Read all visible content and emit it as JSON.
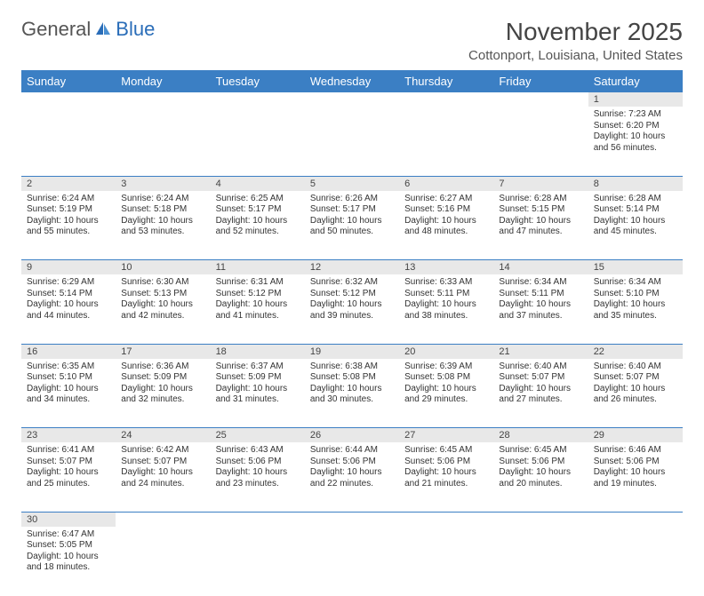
{
  "brand": {
    "part1": "General",
    "part2": "Blue"
  },
  "title": "November 2025",
  "location": "Cottonport, Louisiana, United States",
  "colors": {
    "header_bg": "#3b7fc4",
    "header_text": "#ffffff",
    "daynum_bg": "#e8e8e8",
    "border": "#3b7fc4",
    "body_bg": "#ffffff",
    "text": "#333333",
    "logo_blue": "#2a6db8"
  },
  "fonts": {
    "title_size": 28,
    "location_size": 15,
    "dayheader_size": 13,
    "daynum_size": 11,
    "body_size": 10
  },
  "day_headers": [
    "Sunday",
    "Monday",
    "Tuesday",
    "Wednesday",
    "Thursday",
    "Friday",
    "Saturday"
  ],
  "weeks": [
    {
      "nums": [
        "",
        "",
        "",
        "",
        "",
        "",
        "1"
      ],
      "cells": [
        "",
        "",
        "",
        "",
        "",
        "",
        "Sunrise: 7:23 AM\nSunset: 6:20 PM\nDaylight: 10 hours and 56 minutes."
      ]
    },
    {
      "nums": [
        "2",
        "3",
        "4",
        "5",
        "6",
        "7",
        "8"
      ],
      "cells": [
        "Sunrise: 6:24 AM\nSunset: 5:19 PM\nDaylight: 10 hours and 55 minutes.",
        "Sunrise: 6:24 AM\nSunset: 5:18 PM\nDaylight: 10 hours and 53 minutes.",
        "Sunrise: 6:25 AM\nSunset: 5:17 PM\nDaylight: 10 hours and 52 minutes.",
        "Sunrise: 6:26 AM\nSunset: 5:17 PM\nDaylight: 10 hours and 50 minutes.",
        "Sunrise: 6:27 AM\nSunset: 5:16 PM\nDaylight: 10 hours and 48 minutes.",
        "Sunrise: 6:28 AM\nSunset: 5:15 PM\nDaylight: 10 hours and 47 minutes.",
        "Sunrise: 6:28 AM\nSunset: 5:14 PM\nDaylight: 10 hours and 45 minutes."
      ]
    },
    {
      "nums": [
        "9",
        "10",
        "11",
        "12",
        "13",
        "14",
        "15"
      ],
      "cells": [
        "Sunrise: 6:29 AM\nSunset: 5:14 PM\nDaylight: 10 hours and 44 minutes.",
        "Sunrise: 6:30 AM\nSunset: 5:13 PM\nDaylight: 10 hours and 42 minutes.",
        "Sunrise: 6:31 AM\nSunset: 5:12 PM\nDaylight: 10 hours and 41 minutes.",
        "Sunrise: 6:32 AM\nSunset: 5:12 PM\nDaylight: 10 hours and 39 minutes.",
        "Sunrise: 6:33 AM\nSunset: 5:11 PM\nDaylight: 10 hours and 38 minutes.",
        "Sunrise: 6:34 AM\nSunset: 5:11 PM\nDaylight: 10 hours and 37 minutes.",
        "Sunrise: 6:34 AM\nSunset: 5:10 PM\nDaylight: 10 hours and 35 minutes."
      ]
    },
    {
      "nums": [
        "16",
        "17",
        "18",
        "19",
        "20",
        "21",
        "22"
      ],
      "cells": [
        "Sunrise: 6:35 AM\nSunset: 5:10 PM\nDaylight: 10 hours and 34 minutes.",
        "Sunrise: 6:36 AM\nSunset: 5:09 PM\nDaylight: 10 hours and 32 minutes.",
        "Sunrise: 6:37 AM\nSunset: 5:09 PM\nDaylight: 10 hours and 31 minutes.",
        "Sunrise: 6:38 AM\nSunset: 5:08 PM\nDaylight: 10 hours and 30 minutes.",
        "Sunrise: 6:39 AM\nSunset: 5:08 PM\nDaylight: 10 hours and 29 minutes.",
        "Sunrise: 6:40 AM\nSunset: 5:07 PM\nDaylight: 10 hours and 27 minutes.",
        "Sunrise: 6:40 AM\nSunset: 5:07 PM\nDaylight: 10 hours and 26 minutes."
      ]
    },
    {
      "nums": [
        "23",
        "24",
        "25",
        "26",
        "27",
        "28",
        "29"
      ],
      "cells": [
        "Sunrise: 6:41 AM\nSunset: 5:07 PM\nDaylight: 10 hours and 25 minutes.",
        "Sunrise: 6:42 AM\nSunset: 5:07 PM\nDaylight: 10 hours and 24 minutes.",
        "Sunrise: 6:43 AM\nSunset: 5:06 PM\nDaylight: 10 hours and 23 minutes.",
        "Sunrise: 6:44 AM\nSunset: 5:06 PM\nDaylight: 10 hours and 22 minutes.",
        "Sunrise: 6:45 AM\nSunset: 5:06 PM\nDaylight: 10 hours and 21 minutes.",
        "Sunrise: 6:45 AM\nSunset: 5:06 PM\nDaylight: 10 hours and 20 minutes.",
        "Sunrise: 6:46 AM\nSunset: 5:06 PM\nDaylight: 10 hours and 19 minutes."
      ]
    },
    {
      "nums": [
        "30",
        "",
        "",
        "",
        "",
        "",
        ""
      ],
      "cells": [
        "Sunrise: 6:47 AM\nSunset: 5:05 PM\nDaylight: 10 hours and 18 minutes.",
        "",
        "",
        "",
        "",
        "",
        ""
      ]
    }
  ]
}
